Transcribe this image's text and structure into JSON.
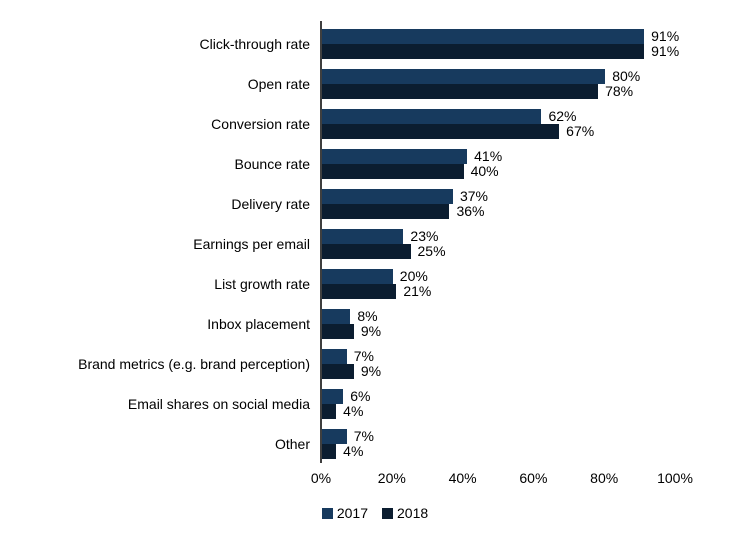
{
  "chart_data": {
    "type": "bar",
    "orientation": "horizontal",
    "title": "",
    "xlabel": "",
    "ylabel": "",
    "xlim": [
      0,
      100
    ],
    "grid": false,
    "legend_position": "bottom",
    "value_suffix": "%",
    "x_ticks": [
      "0%",
      "20%",
      "40%",
      "60%",
      "80%",
      "100%"
    ],
    "x_tick_values": [
      0,
      20,
      40,
      60,
      80,
      100
    ],
    "categories": [
      "Click-through rate",
      "Open rate",
      "Conversion rate",
      "Bounce rate",
      "Delivery rate",
      "Earnings per email",
      "List growth rate",
      "Inbox placement",
      "Brand metrics (e.g. brand perception)",
      "Email shares on social media",
      "Other"
    ],
    "series": [
      {
        "name": "2017",
        "color": "#173A5E",
        "values": [
          91,
          80,
          62,
          41,
          37,
          23,
          20,
          8,
          7,
          6,
          7
        ]
      },
      {
        "name": "2018",
        "color": "#0B1D30",
        "values": [
          91,
          78,
          67,
          40,
          36,
          25,
          21,
          9,
          9,
          4,
          4
        ]
      }
    ],
    "value_labels": [
      [
        "91%",
        "91%"
      ],
      [
        "80%",
        "78%"
      ],
      [
        "62%",
        "67%"
      ],
      [
        "41%",
        "40%"
      ],
      [
        "37%",
        "36%"
      ],
      [
        "23%",
        "25%"
      ],
      [
        "20%",
        "21%"
      ],
      [
        "8%",
        "9%"
      ],
      [
        "7%",
        "9%"
      ],
      [
        "6%",
        "4%"
      ],
      [
        "7%",
        "4%"
      ]
    ]
  },
  "colors": {
    "background": "#ffffff",
    "axis_line": "#3f3f3f",
    "text": "#000000",
    "series_2017": "#173A5E",
    "series_2018": "#0B1D30"
  }
}
